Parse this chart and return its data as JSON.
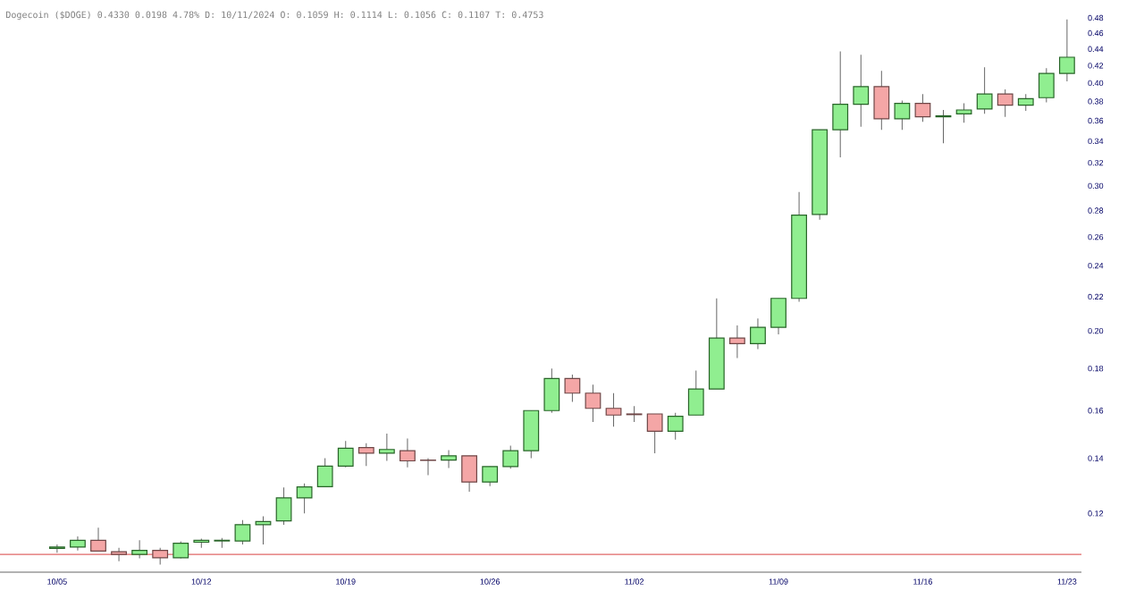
{
  "chart_data": {
    "type": "candlestick",
    "title": "Dogecoin ($DOGE) 0.4330 0.0198 4.78% D: 10/11/2024 O: 0.1059 H: 0.1114 L: 0.1056 C: 0.1107 T: 0.4753",
    "categories": [
      "10/05",
      null,
      null,
      null,
      null,
      null,
      null,
      "10/12",
      null,
      null,
      null,
      null,
      null,
      null,
      "10/19",
      null,
      null,
      null,
      null,
      null,
      null,
      "10/26",
      null,
      null,
      null,
      null,
      null,
      null,
      "11/02",
      null,
      null,
      null,
      null,
      null,
      null,
      "11/09",
      null,
      null,
      null,
      null,
      null,
      null,
      "11/16",
      null,
      null,
      null,
      null,
      null,
      null,
      "11/23"
    ],
    "ohlc": [
      [
        0.1088,
        0.11,
        0.1075,
        0.1092
      ],
      [
        0.1092,
        0.1125,
        0.1082,
        0.1113
      ],
      [
        0.1113,
        0.1153,
        0.108,
        0.108
      ],
      [
        0.1078,
        0.109,
        0.105,
        0.107
      ],
      [
        0.107,
        0.1113,
        0.1058,
        0.1082
      ],
      [
        0.1082,
        0.109,
        0.104,
        0.106
      ],
      [
        0.106,
        0.111,
        0.1058,
        0.1104
      ],
      [
        0.1107,
        0.1118,
        0.109,
        0.1113
      ],
      [
        0.1111,
        0.112,
        0.109,
        0.1113
      ],
      [
        0.1111,
        0.1178,
        0.11,
        0.1163
      ],
      [
        0.1163,
        0.119,
        0.11,
        0.1173
      ],
      [
        0.1175,
        0.129,
        0.1162,
        0.1253
      ],
      [
        0.1253,
        0.1305,
        0.12,
        0.1292
      ],
      [
        0.1293,
        0.14,
        0.1293,
        0.137
      ],
      [
        0.137,
        0.147,
        0.1365,
        0.144
      ],
      [
        0.1443,
        0.146,
        0.137,
        0.142
      ],
      [
        0.142,
        0.15,
        0.139,
        0.1435
      ],
      [
        0.143,
        0.148,
        0.1365,
        0.139
      ],
      [
        0.1393,
        0.14,
        0.1335,
        0.1392
      ],
      [
        0.1393,
        0.1432,
        0.1362,
        0.141
      ],
      [
        0.141,
        0.141,
        0.1275,
        0.131
      ],
      [
        0.131,
        0.1368,
        0.1295,
        0.1368
      ],
      [
        0.1368,
        0.145,
        0.136,
        0.143
      ],
      [
        0.143,
        0.16,
        0.14,
        0.16
      ],
      [
        0.16,
        0.18,
        0.159,
        0.175
      ],
      [
        0.175,
        0.177,
        0.164,
        0.168
      ],
      [
        0.168,
        0.172,
        0.155,
        0.161
      ],
      [
        0.161,
        0.168,
        0.153,
        0.158
      ],
      [
        0.1585,
        0.162,
        0.155,
        0.1582
      ],
      [
        0.1585,
        0.1585,
        0.142,
        0.151
      ],
      [
        0.151,
        0.159,
        0.1475,
        0.1575
      ],
      [
        0.158,
        0.179,
        0.158,
        0.17
      ],
      [
        0.17,
        0.219,
        0.17,
        0.196
      ],
      [
        0.196,
        0.203,
        0.1854,
        0.193
      ],
      [
        0.193,
        0.207,
        0.19,
        0.202
      ],
      [
        0.202,
        0.219,
        0.198,
        0.219
      ],
      [
        0.219,
        0.295,
        0.217,
        0.2765
      ],
      [
        0.277,
        0.351,
        0.273,
        0.351
      ],
      [
        0.351,
        0.437,
        0.325,
        0.377
      ],
      [
        0.377,
        0.433,
        0.354,
        0.396
      ],
      [
        0.396,
        0.414,
        0.351,
        0.362
      ],
      [
        0.362,
        0.381,
        0.351,
        0.378
      ],
      [
        0.378,
        0.388,
        0.359,
        0.364
      ],
      [
        0.364,
        0.371,
        0.338,
        0.365
      ],
      [
        0.367,
        0.378,
        0.358,
        0.371
      ],
      [
        0.372,
        0.418,
        0.367,
        0.388
      ],
      [
        0.388,
        0.393,
        0.364,
        0.376
      ],
      [
        0.376,
        0.388,
        0.37,
        0.383
      ],
      [
        0.384,
        0.417,
        0.379,
        0.411
      ],
      [
        0.411,
        0.478,
        0.402,
        0.43
      ]
    ],
    "log": "y",
    "ylim": [
      0.1018,
      0.48
    ],
    "yticks": [
      0.12,
      0.14,
      0.16,
      0.18,
      {
        "value": 0.2,
        "label": "0.20"
      },
      0.22,
      0.24,
      0.26,
      0.28,
      {
        "value": 0.3,
        "label": "0.30"
      },
      0.32,
      0.34,
      0.36,
      0.38,
      {
        "value": 0.4,
        "label": "0.40"
      },
      0.42,
      0.44,
      0.46,
      0.48
    ],
    "ref_lines": [
      {
        "axis": "y",
        "value": 0.107,
        "color": "#e06666"
      }
    ]
  }
}
